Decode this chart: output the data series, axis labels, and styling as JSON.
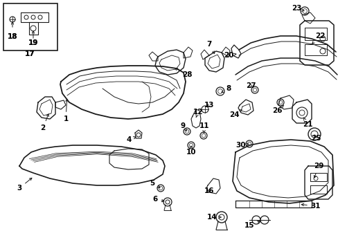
{
  "background_color": "#ffffff",
  "line_color": "#1a1a1a",
  "label_fontsize": 7.5,
  "fig_width": 4.89,
  "fig_height": 3.6,
  "dpi": 100
}
